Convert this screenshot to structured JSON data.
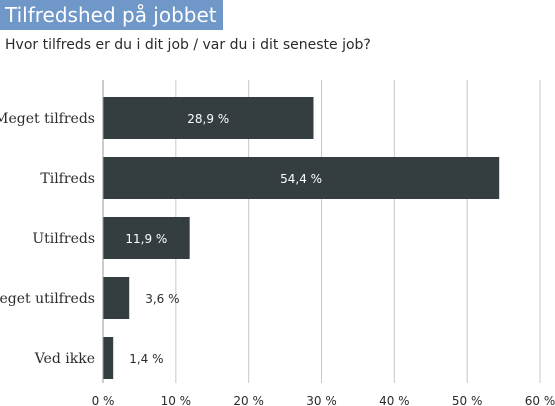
{
  "chart_data": {
    "type": "bar",
    "orientation": "horizontal",
    "title": "Tilfredshed på jobbet",
    "subtitle": "Hvor tilfreds er du i dit job / var du i dit seneste job?",
    "categories": [
      "Meget tilfreds",
      "Tilfreds",
      "Utilfreds",
      "Meget utilfreds",
      "Ved ikke"
    ],
    "values": [
      28.9,
      54.4,
      11.9,
      3.6,
      1.4
    ],
    "value_labels": [
      "28,9 %",
      "54,4 %",
      "11,9 %",
      "3,6 %",
      "1,4 %"
    ],
    "xlim": [
      0,
      60
    ],
    "x_ticks": [
      0,
      10,
      20,
      30,
      40,
      50,
      60
    ],
    "x_tick_labels": [
      "0 %",
      "10 %",
      "20 %",
      "30 %",
      "40 %",
      "50 %",
      "60 %"
    ],
    "grid": true,
    "bar_color": "#343d3f",
    "grid_color": "#c8c8c8",
    "title_background": "#6f97c8"
  }
}
